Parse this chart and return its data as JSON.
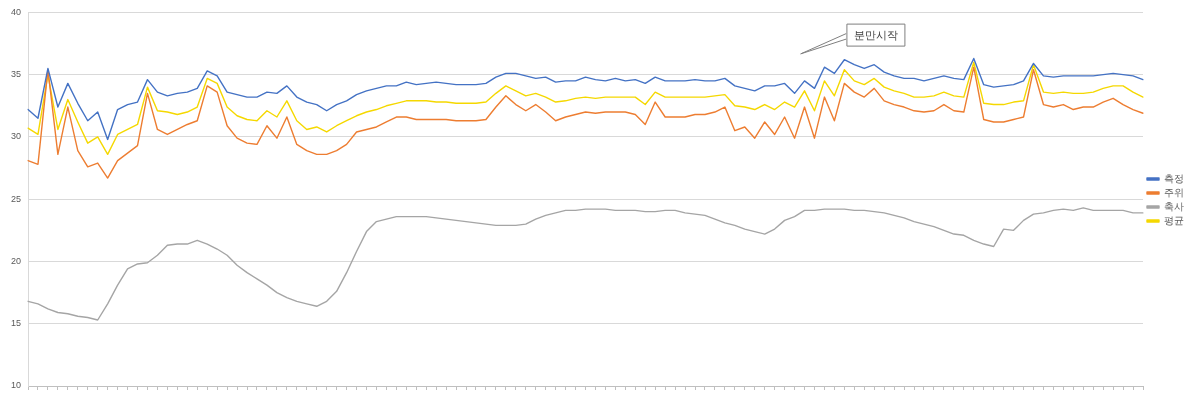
{
  "chart_data": {
    "type": "line",
    "categories": [
      null,
      null,
      null,
      null,
      null,
      null,
      null,
      null,
      null,
      null,
      null,
      null,
      null,
      null,
      null,
      null,
      null,
      null,
      null,
      null,
      null,
      null,
      null,
      null,
      null,
      null,
      null,
      null,
      null,
      null,
      null,
      null,
      null,
      null,
      null,
      null,
      null,
      null,
      null,
      null,
      null,
      null,
      null,
      null,
      null,
      null,
      null,
      null,
      null,
      null,
      null,
      null,
      null,
      null,
      null,
      null,
      null,
      null,
      null,
      null,
      null,
      null,
      null,
      null,
      null,
      null,
      null,
      null,
      null,
      null,
      null,
      null,
      null,
      null,
      null,
      null,
      null,
      null,
      null,
      null,
      null,
      null,
      null,
      null,
      null,
      null,
      null,
      null,
      null,
      null,
      null,
      null,
      null,
      null,
      null,
      null,
      null,
      null,
      null,
      null,
      null,
      null,
      null,
      null,
      null,
      null,
      null,
      null,
      null,
      null,
      null,
      null,
      null
    ],
    "series": [
      {
        "name": "측정",
        "color": "#4472c4",
        "values": [
          32.2,
          31.5,
          35.5,
          32.4,
          34.3,
          32.7,
          31.3,
          32.0,
          29.8,
          32.2,
          32.6,
          32.8,
          34.6,
          33.6,
          33.3,
          33.5,
          33.6,
          33.9,
          35.3,
          34.9,
          33.6,
          33.4,
          33.2,
          33.2,
          33.6,
          33.5,
          34.1,
          33.2,
          32.8,
          32.6,
          32.1,
          32.6,
          32.9,
          33.4,
          33.7,
          33.9,
          34.1,
          34.1,
          34.4,
          34.2,
          34.3,
          34.4,
          34.3,
          34.2,
          34.2,
          34.2,
          34.3,
          34.8,
          35.1,
          35.1,
          34.9,
          34.7,
          34.8,
          34.4,
          34.5,
          34.5,
          34.8,
          34.6,
          34.5,
          34.7,
          34.5,
          34.6,
          34.3,
          34.8,
          34.5,
          34.5,
          34.5,
          34.6,
          34.5,
          34.5,
          34.7,
          34.1,
          33.9,
          33.7,
          34.1,
          34.1,
          34.3,
          33.5,
          34.5,
          33.9,
          35.6,
          35.1,
          36.2,
          35.8,
          35.5,
          35.8,
          35.2,
          34.9,
          34.7,
          34.7,
          34.5,
          34.7,
          34.9,
          34.7,
          34.6,
          36.3,
          34.2,
          34.0,
          34.1,
          34.2,
          34.5,
          35.9,
          34.9,
          34.8,
          34.9,
          34.9,
          34.9,
          34.9,
          35.0,
          35.1,
          35.0,
          34.9,
          34.6
        ]
      },
      {
        "name": "주위",
        "color": "#ed7d31",
        "values": [
          28.1,
          27.8,
          35.4,
          28.6,
          32.4,
          28.9,
          27.6,
          27.9,
          26.7,
          28.1,
          28.7,
          29.3,
          33.5,
          30.6,
          30.2,
          30.6,
          31.0,
          31.3,
          34.1,
          33.6,
          30.9,
          29.9,
          29.5,
          29.4,
          30.9,
          29.9,
          31.6,
          29.4,
          28.9,
          28.6,
          28.6,
          28.9,
          29.4,
          30.4,
          30.6,
          30.8,
          31.2,
          31.6,
          31.6,
          31.4,
          31.4,
          31.4,
          31.4,
          31.3,
          31.3,
          31.3,
          31.4,
          32.4,
          33.3,
          32.6,
          32.1,
          32.6,
          32.0,
          31.3,
          31.6,
          31.8,
          32.0,
          31.9,
          32.0,
          32.0,
          32.0,
          31.8,
          31.0,
          32.8,
          31.6,
          31.6,
          31.6,
          31.8,
          31.8,
          32.0,
          32.4,
          30.5,
          30.8,
          29.9,
          31.2,
          30.2,
          31.6,
          29.9,
          32.4,
          29.9,
          33.2,
          31.3,
          34.3,
          33.6,
          33.2,
          33.9,
          32.9,
          32.6,
          32.4,
          32.1,
          32.0,
          32.1,
          32.6,
          32.1,
          32.0,
          35.6,
          31.4,
          31.2,
          31.2,
          31.4,
          31.6,
          35.4,
          32.6,
          32.4,
          32.6,
          32.2,
          32.4,
          32.4,
          32.8,
          33.1,
          32.6,
          32.2,
          31.9
        ]
      },
      {
        "name": "축사",
        "color": "#a5a5a5",
        "values": [
          16.8,
          16.6,
          16.2,
          15.9,
          15.8,
          15.6,
          15.5,
          15.3,
          16.6,
          18.1,
          19.4,
          19.8,
          19.9,
          20.5,
          21.3,
          21.4,
          21.4,
          21.7,
          21.4,
          21.0,
          20.5,
          19.7,
          19.1,
          18.6,
          18.1,
          17.5,
          17.1,
          16.8,
          16.6,
          16.4,
          16.8,
          17.6,
          19.1,
          20.8,
          22.4,
          23.2,
          23.4,
          23.6,
          23.6,
          23.6,
          23.6,
          23.5,
          23.4,
          23.3,
          23.2,
          23.1,
          23.0,
          22.9,
          22.9,
          22.9,
          23.0,
          23.4,
          23.7,
          23.9,
          24.1,
          24.1,
          24.2,
          24.2,
          24.2,
          24.1,
          24.1,
          24.1,
          24.0,
          24.0,
          24.1,
          24.1,
          23.9,
          23.8,
          23.7,
          23.4,
          23.1,
          22.9,
          22.6,
          22.4,
          22.2,
          22.6,
          23.3,
          23.6,
          24.1,
          24.1,
          24.2,
          24.2,
          24.2,
          24.1,
          24.1,
          24.0,
          23.9,
          23.7,
          23.5,
          23.2,
          23.0,
          22.8,
          22.5,
          22.2,
          22.1,
          21.7,
          21.4,
          21.2,
          22.6,
          22.5,
          23.3,
          23.8,
          23.9,
          24.1,
          24.2,
          24.1,
          24.3,
          24.1,
          24.1,
          24.1,
          24.1,
          23.9,
          23.9
        ]
      },
      {
        "name": "평균",
        "color": "#f5d800",
        "values": [
          30.7,
          30.2,
          35.0,
          30.6,
          33.0,
          31.2,
          29.5,
          30.0,
          28.6,
          30.2,
          30.6,
          31.0,
          34.0,
          32.1,
          32.0,
          31.8,
          32.0,
          32.4,
          34.7,
          34.3,
          32.4,
          31.7,
          31.4,
          31.3,
          32.1,
          31.6,
          32.9,
          31.3,
          30.6,
          30.8,
          30.4,
          30.9,
          31.3,
          31.7,
          32.0,
          32.2,
          32.5,
          32.7,
          32.9,
          32.9,
          32.9,
          32.8,
          32.8,
          32.7,
          32.7,
          32.7,
          32.8,
          33.5,
          34.1,
          33.7,
          33.3,
          33.5,
          33.2,
          32.8,
          32.9,
          33.1,
          33.2,
          33.1,
          33.2,
          33.2,
          33.2,
          33.2,
          32.6,
          33.6,
          33.2,
          33.2,
          33.2,
          33.2,
          33.2,
          33.3,
          33.4,
          32.5,
          32.4,
          32.2,
          32.6,
          32.2,
          32.8,
          32.4,
          33.7,
          32.1,
          34.5,
          33.3,
          35.4,
          34.5,
          34.2,
          34.7,
          34.0,
          33.7,
          33.5,
          33.2,
          33.2,
          33.3,
          33.6,
          33.3,
          33.2,
          36.0,
          32.7,
          32.6,
          32.6,
          32.8,
          32.9,
          35.8,
          33.6,
          33.5,
          33.6,
          33.5,
          33.5,
          33.6,
          33.9,
          34.1,
          34.1,
          33.6,
          33.2
        ]
      }
    ],
    "ylim": [
      10,
      40
    ],
    "yticks": [
      10,
      15,
      20,
      25,
      30,
      35,
      40
    ],
    "grid": "y",
    "legend": "right",
    "tick_labels": "y",
    "marker": "none",
    "line_style": "solid",
    "annotations": [
      "분만시작"
    ]
  }
}
